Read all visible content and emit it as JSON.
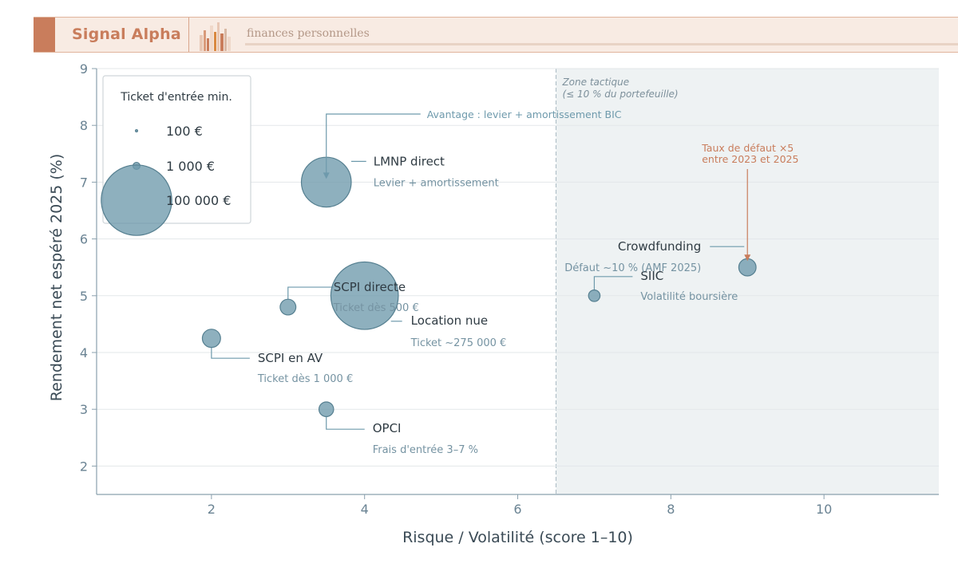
{
  "header": {
    "brand": "Signal Alpha",
    "tagline": "finances personnelles",
    "colors": {
      "accent": "#c97d5c",
      "background": "#f8ebe3",
      "rule": "#e8d3c5"
    }
  },
  "chart_data": {
    "type": "scatter",
    "title": "",
    "xlabel": "Risque / Volatilité (score 1–10)",
    "ylabel": "Rendement net espéré 2025 (%)",
    "xlim": [
      0.5,
      11.5
    ],
    "ylim": [
      1.5,
      9
    ],
    "xticks": [
      2,
      4,
      6,
      8,
      10
    ],
    "yticks": [
      2,
      3,
      4,
      5,
      6,
      7,
      8,
      9
    ],
    "grid": "horizontal",
    "size_encoding": "Ticket d'entrée min.",
    "legend": {
      "title": "Ticket d'entrée min.",
      "placement": "top-left",
      "entries": [
        {
          "label": "100 €",
          "ticket": 100
        },
        {
          "label": "1 000 €",
          "ticket": 1000
        },
        {
          "label": "100 000 €",
          "ticket": 100000
        }
      ]
    },
    "points": [
      {
        "name": "LMNP direct",
        "sub": "Levier + amortissement",
        "x": 3.5,
        "y": 7.0,
        "ticket": 1500000
      },
      {
        "name": "SCPI directe",
        "sub": "Ticket dès 500 €",
        "x": 3.0,
        "y": 4.8,
        "ticket": 150000
      },
      {
        "name": "Location nue",
        "sub": "Ticket ~275 000 €",
        "x": 4.0,
        "y": 5.0,
        "ticket": 2750000
      },
      {
        "name": "SCPI en AV",
        "sub": "Ticket dès 1 000 €",
        "x": 2.0,
        "y": 4.25,
        "ticket": 200000
      },
      {
        "name": "OPCI",
        "sub": "Frais d'entrée 3–7 %",
        "x": 3.5,
        "y": 3.0,
        "ticket": 130000
      },
      {
        "name": "SIIC",
        "sub": "Volatilité boursière",
        "x": 7.0,
        "y": 5.0,
        "ticket": 80000
      },
      {
        "name": "Crowdfunding",
        "sub": "Défaut ~10 % (AMF 2025)",
        "x": 9.0,
        "y": 5.5,
        "ticket": 180000
      }
    ],
    "zone": {
      "x_start": 6.5,
      "label_line1": "Zone tactique",
      "label_line2": "(≤ 10 % du portefeuille)"
    },
    "annotations": [
      {
        "text": "Avantage : levier + amortissement BIC",
        "target": "LMNP direct"
      },
      {
        "text_line1": "Taux de défaut ×5",
        "text_line2": "entre 2023 et 2025",
        "target": "Crowdfunding",
        "color": "#c97d5c"
      }
    ],
    "colors": {
      "bubble": "#6e9aac",
      "bubble_edge": "#557f90",
      "axis_text": "#6a8393",
      "zone": "#eef2f3",
      "annotation": "#c97d5c"
    }
  }
}
